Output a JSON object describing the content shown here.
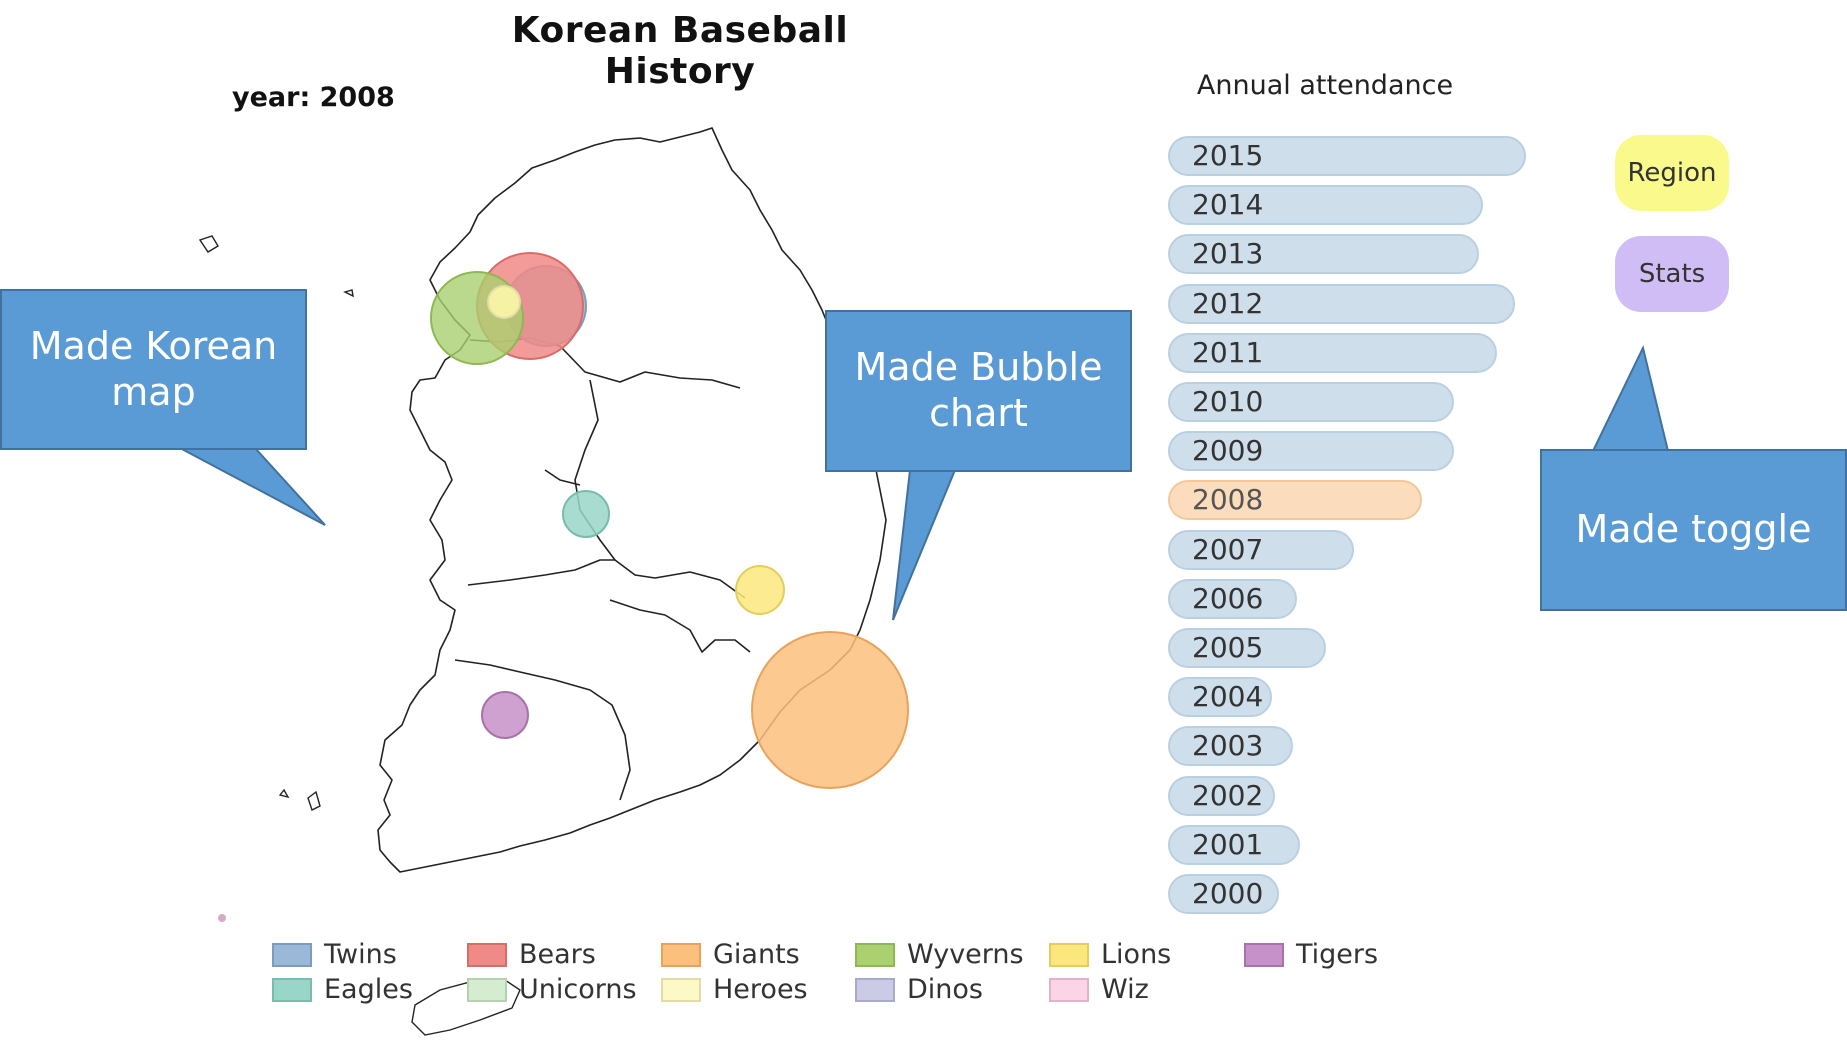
{
  "title": "Korean Baseball History",
  "year_label": "year: 2008",
  "attendance_title": "Annual attendance",
  "years": [
    {
      "label": "2015",
      "attendance": 100,
      "active": false
    },
    {
      "label": "2014",
      "attendance": 88,
      "active": false
    },
    {
      "label": "2013",
      "attendance": 87,
      "active": false
    },
    {
      "label": "2012",
      "attendance": 97,
      "active": false
    },
    {
      "label": "2011",
      "attendance": 92,
      "active": false
    },
    {
      "label": "2010",
      "attendance": 80,
      "active": false
    },
    {
      "label": "2009",
      "attendance": 80,
      "active": false
    },
    {
      "label": "2008",
      "attendance": 71,
      "active": true
    },
    {
      "label": "2007",
      "attendance": 52,
      "active": false
    },
    {
      "label": "2006",
      "attendance": 36,
      "active": false
    },
    {
      "label": "2005",
      "attendance": 44,
      "active": false
    },
    {
      "label": "2004",
      "attendance": 29,
      "active": false
    },
    {
      "label": "2003",
      "attendance": 35,
      "active": false
    },
    {
      "label": "2002",
      "attendance": 30,
      "active": false
    },
    {
      "label": "2001",
      "attendance": 37,
      "active": false
    },
    {
      "label": "2000",
      "attendance": 31,
      "active": false
    }
  ],
  "toggles": {
    "region": "Region",
    "stats": "Stats"
  },
  "callouts": {
    "map": "Made Korean map",
    "bubble": "Made Bubble chart",
    "toggle": "Made toggle"
  },
  "bubbles": [
    {
      "team": "Twins",
      "relative_size": 41,
      "color": "#9ab9d8"
    },
    {
      "team": "Bears",
      "relative_size": 44,
      "color": "#f08a86"
    },
    {
      "team": "Wyverns",
      "relative_size": 42,
      "color": "#aad06f"
    },
    {
      "team": "Heroes",
      "relative_size": 15,
      "color": "#fdf6a8"
    },
    {
      "team": "Eagles",
      "relative_size": 22,
      "color": "#9ad6c8"
    },
    {
      "team": "Lions",
      "relative_size": 22,
      "color": "#fbe77c"
    },
    {
      "team": "Giants",
      "relative_size": 77,
      "color": "#fbc07c"
    },
    {
      "team": "Tigers",
      "relative_size": 22,
      "color": "#c690c8"
    }
  ],
  "legend": [
    {
      "label": "Twins",
      "fill": "#9ab9d8",
      "stroke": "#7a9cc0"
    },
    {
      "label": "Bears",
      "fill": "#f08a86",
      "stroke": "#d86c68"
    },
    {
      "label": "Giants",
      "fill": "#fbc07c",
      "stroke": "#e8a25c"
    },
    {
      "label": "Wyverns",
      "fill": "#aad06f",
      "stroke": "#8db852"
    },
    {
      "label": "Lions",
      "fill": "#fbe77c",
      "stroke": "#e3cd5c"
    },
    {
      "label": "Tigers",
      "fill": "#c690c8",
      "stroke": "#a872aa"
    },
    {
      "label": "Eagles",
      "fill": "#9ad6c8",
      "stroke": "#78bcae"
    },
    {
      "label": "Unicorns",
      "fill": "#d5ecd0",
      "stroke": "#b5d2ae"
    },
    {
      "label": "Heroes",
      "fill": "#fdf9c7",
      "stroke": "#e2dca6"
    },
    {
      "label": "Dinos",
      "fill": "#cbcbe5",
      "stroke": "#a9a9c9"
    },
    {
      "label": "Wiz",
      "fill": "#fbd4e5",
      "stroke": "#e2b2c8"
    }
  ]
}
